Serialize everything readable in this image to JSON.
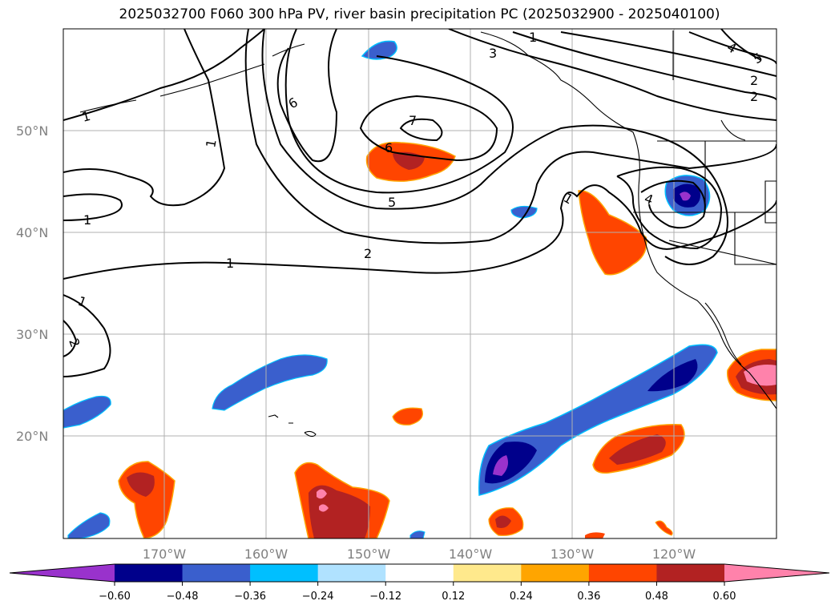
{
  "title": "2025032700 F060 300 hPa PV, river basin precipitation PC (2025032900 - 2025040100)",
  "map": {
    "lat_labels": [
      "50°N",
      "40°N",
      "30°N",
      "20°N"
    ],
    "lon_labels": [
      "170°W",
      "160°W",
      "150°W",
      "140°W",
      "130°W",
      "120°W"
    ],
    "gridline_color": "#b0b0b0",
    "label_color": "#808080"
  },
  "contours": {
    "variable": "300 hPa PV",
    "labels": [
      "1",
      "1",
      "1",
      "1",
      "1",
      "2",
      "2",
      "5",
      "6",
      "6",
      "7",
      "1",
      "4",
      "3",
      "2",
      "4",
      "5",
      "2",
      "1"
    ]
  },
  "colorbar": {
    "tick_labels": [
      "−0.60",
      "−0.48",
      "−0.36",
      "−0.24",
      "−0.12",
      "0.12",
      "0.24",
      "0.36",
      "0.48",
      "0.60"
    ],
    "colors": [
      "#9932cc",
      "#00008b",
      "#3a5fcd",
      "#00bfff",
      "#b0e2ff",
      "#ffffff",
      "#ffe98c",
      "#ffa500",
      "#ff4500",
      "#b22222",
      "#ff82ab"
    ]
  }
}
